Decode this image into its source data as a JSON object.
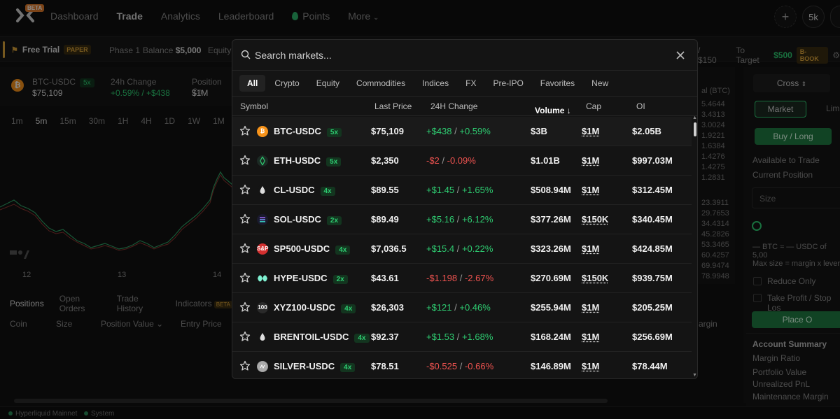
{
  "nav": {
    "beta": "BETA",
    "links": [
      "Dashboard",
      "Trade",
      "Analytics",
      "Leaderboard",
      "Points",
      "More"
    ],
    "right_button": "5k"
  },
  "subbar": {
    "free_trial": "Free Trial",
    "paper": "PAPER",
    "phase": "Phase 1",
    "balance_label": "Balance",
    "balance_value": "$5,000",
    "equity_label": "Equity",
    "right_fragment": "/ $150",
    "to_target_label": "To Target",
    "to_target_value": "$500",
    "bbook": "B-BOOK"
  },
  "market_header": {
    "symbol": "BTC-USDC",
    "leverage": "5x",
    "price": "$75,109",
    "change_label": "24h Change",
    "change_value": "+0.59% / +$438",
    "position_label": "Position Ca",
    "position_value": "$1M"
  },
  "chart": {
    "timeframes": [
      "1m",
      "5m",
      "15m",
      "30m",
      "1H",
      "4H",
      "1D",
      "1W",
      "1M"
    ],
    "x_labels": [
      "12",
      "13",
      "14"
    ]
  },
  "positions": {
    "tabs": [
      "Positions",
      "Open Orders",
      "Trade History",
      "Indicators"
    ],
    "indicators_badge": "BETA",
    "columns": [
      "Coin",
      "Size",
      "Position Value",
      "Entry Price"
    ],
    "margin_label": "Margin"
  },
  "orderbook_fragment": {
    "header": "al (BTC)",
    "values": [
      "5.4644",
      "3.4313",
      "3.0024",
      "1.9221",
      "1.6384",
      "1.4276",
      "1.4275",
      "1.2831",
      "23.3911",
      "29.7653",
      "34.4314",
      "45.2826",
      "53.3465",
      "60.4257",
      "69.9474",
      "78.9948"
    ]
  },
  "right_panel": {
    "cross": "Cross",
    "market": "Market",
    "limit": "Limi",
    "buy_long": "Buy / Long",
    "available": "Available to Trade",
    "current_position": "Current Position",
    "size": "Size",
    "btc_line": "— BTC ≈ — USDC of 5,00",
    "max_size": "Max size = margin x lever",
    "reduce_only": "Reduce Only",
    "tp_sl": "Take Profit / Stop Los",
    "place_order": "Place O"
  },
  "account_summary": {
    "title": "Account Summary",
    "lines": [
      "Margin Ratio",
      "Portfolio Value",
      "Unrealized PnL",
      "Maintenance Margin"
    ]
  },
  "footer": {
    "network": "Hyperliquid Mainnet",
    "system": "System"
  },
  "modal": {
    "search_placeholder": "Search markets...",
    "tabs": [
      "All",
      "Crypto",
      "Equity",
      "Commodities",
      "Indices",
      "FX",
      "Pre-IPO",
      "Favorites",
      "New"
    ],
    "columns": {
      "symbol": "Symbol",
      "last_price": "Last Price",
      "change": "24H Change",
      "volume": "Volume ↓",
      "cap": "Cap",
      "oi": "OI"
    },
    "rows": [
      {
        "symbol": "BTC-USDC",
        "lev": "5x",
        "price": "$75,109",
        "chg_abs": "+$438",
        "chg_pct": "+0.59%",
        "dir": "up",
        "volume": "$3B",
        "cap": "$1M",
        "oi": "$2.05B",
        "icon": "bitcoin-icon",
        "icon_color": "#f7931a",
        "icon_text": "₿"
      },
      {
        "symbol": "ETH-USDC",
        "lev": "5x",
        "price": "$2,350",
        "chg_abs": "-$2",
        "chg_pct": "-0.09%",
        "dir": "dn",
        "volume": "$1.01B",
        "cap": "$1M",
        "oi": "$997.03M",
        "icon": "ethereum-icon",
        "icon_color": "#1c2a24",
        "icon_text": ""
      },
      {
        "symbol": "CL-USDC",
        "lev": "4x",
        "price": "$89.55",
        "chg_abs": "+$1.45",
        "chg_pct": "+1.65%",
        "dir": "up",
        "volume": "$508.94M",
        "cap": "$1M",
        "oi": "$312.45M",
        "icon": "oil-drop-icon",
        "icon_color": "#141414",
        "icon_text": ""
      },
      {
        "symbol": "SOL-USDC",
        "lev": "2x",
        "price": "$89.49",
        "chg_abs": "+$5.16",
        "chg_pct": "+6.12%",
        "dir": "up",
        "volume": "$377.26M",
        "cap": "$150K",
        "oi": "$340.45M",
        "icon": "solana-icon",
        "icon_color": "#1a1a2e",
        "icon_text": ""
      },
      {
        "symbol": "SP500-USDC",
        "lev": "4x",
        "price": "$7,036.5",
        "chg_abs": "+$15.4",
        "chg_pct": "+0.22%",
        "dir": "up",
        "volume": "$323.26M",
        "cap": "$1M",
        "oi": "$424.85M",
        "icon": "sp500-icon",
        "icon_color": "#d32f2f",
        "icon_text": "S&P"
      },
      {
        "symbol": "HYPE-USDC",
        "lev": "2x",
        "price": "$43.61",
        "chg_abs": "-$1.198",
        "chg_pct": "-2.67%",
        "dir": "dn",
        "volume": "$270.69M",
        "cap": "$150K",
        "oi": "$939.75M",
        "icon": "hype-icon",
        "icon_color": "#141414",
        "icon_text": ""
      },
      {
        "symbol": "XYZ100-USDC",
        "lev": "4x",
        "price": "$26,303",
        "chg_abs": "+$121",
        "chg_pct": "+0.46%",
        "dir": "up",
        "volume": "$255.94M",
        "cap": "$1M",
        "oi": "$205.25M",
        "icon": "xyz100-icon",
        "icon_color": "#2a2a2a",
        "icon_text": "100"
      },
      {
        "symbol": "BRENTOIL-USDC",
        "lev": "4x",
        "price": "$92.37",
        "chg_abs": "+$1.53",
        "chg_pct": "+1.68%",
        "dir": "up",
        "volume": "$168.24M",
        "cap": "$1M",
        "oi": "$256.69M",
        "icon": "oil-drop-icon",
        "icon_color": "#141414",
        "icon_text": ""
      },
      {
        "symbol": "SILVER-USDC",
        "lev": "4x",
        "price": "$78.51",
        "chg_abs": "-$0.525",
        "chg_pct": "-0.66%",
        "dir": "dn",
        "volume": "$146.89M",
        "cap": "$1M",
        "oi": "$78.44M",
        "icon": "silver-icon",
        "icon_color": "#9e9e9e",
        "icon_text": ""
      }
    ]
  }
}
